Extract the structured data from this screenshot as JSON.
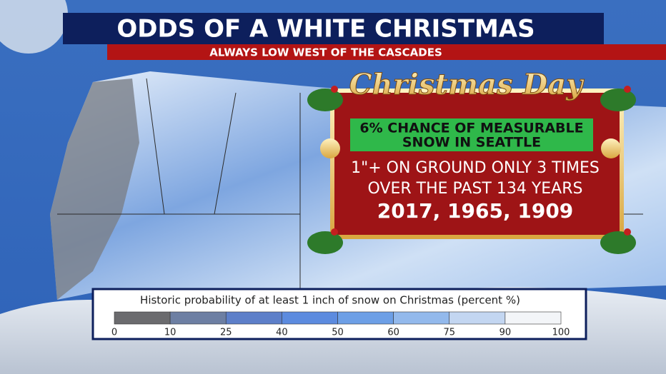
{
  "header": {
    "title": "ODDS OF A WHITE CHRISTMAS",
    "subtitle": "ALWAYS LOW WEST OF THE CASCADES"
  },
  "card": {
    "heading": "Christmas Day",
    "highlight": [
      "6% CHANCE OF MEASURABLE",
      "SNOW IN SEATTLE"
    ],
    "lines": [
      "1\"+ ON GROUND ONLY 3 TIMES",
      "OVER THE PAST 134 YEARS"
    ],
    "years": "2017, 1965, 1909"
  },
  "legend": {
    "title": "Historic probability of at least 1 inch of snow on Christmas (percent %)",
    "ticks": [
      0,
      10,
      25,
      40,
      50,
      60,
      75,
      90,
      100
    ],
    "colors": [
      "#6b6b6e",
      "#6d7fa3",
      "#5d7fc9",
      "#5c8bdf",
      "#6d9fe6",
      "#93b9ec",
      "#c3d6f1",
      "#f3f5f8"
    ]
  }
}
